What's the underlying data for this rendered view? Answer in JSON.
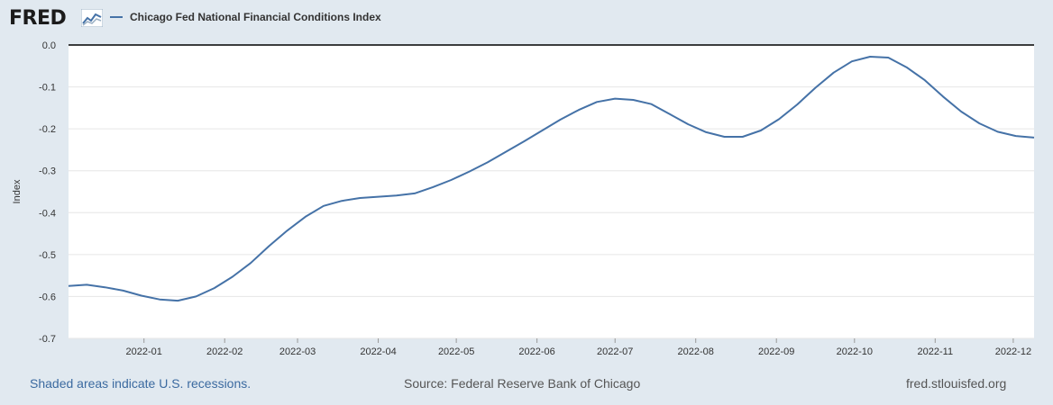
{
  "header": {
    "logo_text": "FRED",
    "logo_icon": "fred-chart-mark-icon",
    "series_label": "Chicago Fed National Financial Conditions Index"
  },
  "footer": {
    "recessions_note": "Shaded areas indicate U.S. recessions.",
    "source": "Source: Federal Reserve Bank of Chicago",
    "site": "fred.stlouisfed.org"
  },
  "colors": {
    "line": "#4572a7",
    "background": "#e1e9f0",
    "plot": "#ffffff"
  },
  "chart_data": {
    "type": "line",
    "ylabel": "Index",
    "ylim": [
      -0.7,
      0.0
    ],
    "yticks": [
      "0.0",
      "-0.1",
      "-0.2",
      "-0.3",
      "-0.4",
      "-0.5",
      "-0.6",
      "-0.7"
    ],
    "xlim": [
      "2021-12-03",
      "2022-12-09"
    ],
    "xticks": [
      "2022-01",
      "2022-02",
      "2022-03",
      "2022-04",
      "2022-05",
      "2022-06",
      "2022-07",
      "2022-08",
      "2022-09",
      "2022-10",
      "2022-11",
      "2022-12"
    ],
    "grid": true,
    "series": [
      {
        "name": "Chicago Fed National Financial Conditions Index",
        "x": [
          "2021-12-03",
          "2021-12-10",
          "2021-12-17",
          "2021-12-24",
          "2021-12-31",
          "2022-01-07",
          "2022-01-14",
          "2022-01-21",
          "2022-01-28",
          "2022-02-04",
          "2022-02-11",
          "2022-02-18",
          "2022-02-25",
          "2022-03-04",
          "2022-03-11",
          "2022-03-18",
          "2022-03-25",
          "2022-04-01",
          "2022-04-08",
          "2022-04-15",
          "2022-04-22",
          "2022-04-29",
          "2022-05-06",
          "2022-05-13",
          "2022-05-20",
          "2022-05-27",
          "2022-06-03",
          "2022-06-10",
          "2022-06-17",
          "2022-06-24",
          "2022-07-01",
          "2022-07-08",
          "2022-07-15",
          "2022-07-22",
          "2022-07-29",
          "2022-08-05",
          "2022-08-12",
          "2022-08-19",
          "2022-08-26",
          "2022-09-02",
          "2022-09-09",
          "2022-09-16",
          "2022-09-23",
          "2022-09-30",
          "2022-10-07",
          "2022-10-14",
          "2022-10-21",
          "2022-10-28",
          "2022-11-04",
          "2022-11-11",
          "2022-11-18",
          "2022-11-25",
          "2022-12-02",
          "2022-12-09"
        ],
        "values": [
          -0.575,
          -0.572,
          -0.578,
          -0.586,
          -0.598,
          -0.607,
          -0.61,
          -0.6,
          -0.58,
          -0.553,
          -0.52,
          -0.48,
          -0.443,
          -0.41,
          -0.384,
          -0.372,
          -0.365,
          -0.362,
          -0.359,
          -0.354,
          -0.339,
          -0.322,
          -0.302,
          -0.28,
          -0.255,
          -0.23,
          -0.204,
          -0.178,
          -0.155,
          -0.136,
          -0.128,
          -0.131,
          -0.141,
          -0.165,
          -0.189,
          -0.208,
          -0.219,
          -0.219,
          -0.204,
          -0.177,
          -0.142,
          -0.102,
          -0.066,
          -0.039,
          -0.028,
          -0.03,
          -0.053,
          -0.084,
          -0.123,
          -0.159,
          -0.187,
          -0.207,
          -0.217,
          -0.221
        ]
      }
    ]
  }
}
